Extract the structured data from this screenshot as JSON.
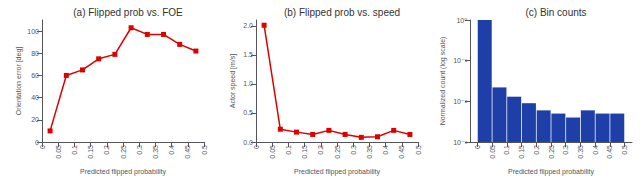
{
  "chart_data": [
    {
      "type": "line",
      "title": "(a) Flipped prob vs. FOE",
      "xlabel": "Predicted flipped probability",
      "ylabel": "Orientation error [deg]",
      "x": [
        0.025,
        0.075,
        0.125,
        0.175,
        0.225,
        0.275,
        0.325,
        0.375,
        0.425,
        0.475
      ],
      "values": [
        10,
        60,
        65,
        75,
        79,
        103,
        97,
        97,
        88,
        82
      ],
      "color": "#dd0000",
      "marker": "square",
      "xlim": [
        0.0,
        0.5
      ],
      "ylim": [
        0,
        110
      ],
      "xticks": [
        0,
        0.05,
        0.1,
        0.15,
        0.2,
        0.25,
        0.3,
        0.35,
        0.4,
        0.45,
        0.5
      ],
      "yticks": [
        0,
        20,
        40,
        60,
        80,
        100
      ],
      "grid": false
    },
    {
      "type": "line",
      "title": "(b) Flipped prob vs. speed",
      "xlabel": "Predicted flipped probability",
      "ylabel": "Actor speed [m/s]",
      "x": [
        0.025,
        0.075,
        0.125,
        0.175,
        0.225,
        0.275,
        0.325,
        0.375,
        0.425,
        0.475
      ],
      "values": [
        2.01,
        0.22,
        0.17,
        0.13,
        0.2,
        0.13,
        0.08,
        0.09,
        0.2,
        0.13
      ],
      "color": "#dd0000",
      "marker": "square",
      "xlim": [
        0.0,
        0.5
      ],
      "ylim": [
        0.0,
        2.1
      ],
      "xticks": [
        0,
        0.05,
        0.1,
        0.15,
        0.2,
        0.25,
        0.3,
        0.35,
        0.4,
        0.45,
        0.5
      ],
      "yticks": [
        {
          "value": 0,
          "label": "0.0"
        },
        0.5,
        {
          "value": 1,
          "label": "1.0"
        },
        1.5,
        {
          "value": 2,
          "label": "2.0"
        }
      ],
      "grid": false
    },
    {
      "type": "bar",
      "title": "(c) Bin counts",
      "xlabel": "Predicted flipped probability",
      "ylabel": "Normalized count (log scale)",
      "bins": [
        0.0,
        0.05,
        0.1,
        0.15,
        0.2,
        0.25,
        0.3,
        0.35,
        0.4,
        0.45,
        0.5
      ],
      "values": [
        1.0,
        0.022,
        0.013,
        0.009,
        0.006,
        0.005,
        0.004,
        0.006,
        0.005,
        0.005
      ],
      "color": "#1f3fa8",
      "log": "y",
      "xlim": [
        -0.025,
        0.525
      ],
      "ylim": [
        0.001,
        1
      ],
      "xticks": [
        0,
        0.05,
        0.1,
        0.15,
        0.2,
        0.25,
        0.3,
        0.35,
        0.4,
        0.45,
        0.5
      ],
      "yticks": [
        {
          "value": 0.001,
          "label": "10⁻³"
        },
        {
          "value": 0.01,
          "label": "10⁻²"
        },
        {
          "value": 0.1,
          "label": "10⁻¹"
        },
        {
          "value": 1,
          "label": "10⁰"
        }
      ],
      "grid": false
    }
  ]
}
